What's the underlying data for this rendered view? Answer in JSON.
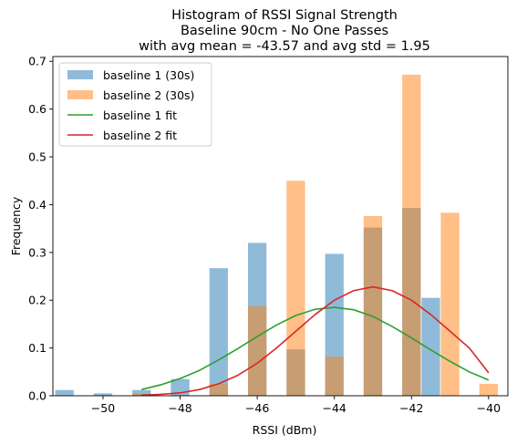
{
  "chart_data": {
    "type": "bar",
    "title_lines": [
      "Histogram of RSSI Signal Strength",
      "Baseline 90cm - No One Passes",
      "with avg mean = -43.57 and avg std = 1.95"
    ],
    "xlabel": "RSSI (dBm)",
    "ylabel": "Frequency",
    "xlim": [
      -51.3,
      -39.5
    ],
    "ylim": [
      0,
      0.71
    ],
    "xticks": [
      -50,
      -48,
      -46,
      -44,
      -42,
      -40
    ],
    "xtick_labels": [
      "−50",
      "−48",
      "−46",
      "−44",
      "−42",
      "−40"
    ],
    "yticks": [
      0.0,
      0.1,
      0.2,
      0.3,
      0.4,
      0.5,
      0.6,
      0.7
    ],
    "ytick_labels": [
      "0.0",
      "0.1",
      "0.2",
      "0.3",
      "0.4",
      "0.5",
      "0.6",
      "0.7"
    ],
    "bar_width": 0.48,
    "legend_position": "upper left",
    "series": [
      {
        "name": "baseline 1 (30s)",
        "kind": "bar",
        "color": "#1f77b4",
        "opacity": 0.5,
        "x": [
          -51.0,
          -50.0,
          -49.0,
          -48.0,
          -47.0,
          -46.0,
          -45.0,
          -44.0,
          -43.0,
          -42.0,
          -41.5
        ],
        "values": [
          0.012,
          0.005,
          0.012,
          0.035,
          0.267,
          0.32,
          0.097,
          0.297,
          0.352,
          0.393,
          0.205
        ]
      },
      {
        "name": "baseline 2 (30s)",
        "kind": "bar",
        "color": "#ff7f0e",
        "opacity": 0.5,
        "x": [
          -49.0,
          -47.0,
          -46.0,
          -45.0,
          -44.0,
          -43.0,
          -42.0,
          -41.0,
          -40.0
        ],
        "values": [
          0.005,
          0.025,
          0.188,
          0.45,
          0.082,
          0.376,
          0.672,
          0.383,
          0.025
        ]
      },
      {
        "name": "baseline 1 fit",
        "kind": "line",
        "color": "#2ca02c",
        "x": [
          -49,
          -48.5,
          -48,
          -47.5,
          -47,
          -46.5,
          -46,
          -45.5,
          -45,
          -44.5,
          -44,
          -43.5,
          -43,
          -42.5,
          -42,
          -41.5,
          -41,
          -40.5,
          -40
        ],
        "values": [
          0.013,
          0.023,
          0.036,
          0.053,
          0.075,
          0.099,
          0.124,
          0.148,
          0.168,
          0.181,
          0.185,
          0.18,
          0.166,
          0.145,
          0.121,
          0.096,
          0.072,
          0.05,
          0.033
        ]
      },
      {
        "name": "baseline 2 fit",
        "kind": "line",
        "color": "#d62728",
        "x": [
          -49,
          -48.5,
          -48,
          -47.5,
          -47,
          -46.5,
          -46,
          -45.5,
          -45,
          -44.5,
          -44,
          -43.5,
          -43,
          -42.5,
          -42,
          -41.5,
          -41,
          -40.5,
          -40
        ],
        "values": [
          0.001,
          0.003,
          0.006,
          0.013,
          0.025,
          0.043,
          0.068,
          0.1,
          0.135,
          0.17,
          0.2,
          0.22,
          0.228,
          0.22,
          0.2,
          0.17,
          0.135,
          0.1,
          0.048
        ]
      }
    ]
  }
}
